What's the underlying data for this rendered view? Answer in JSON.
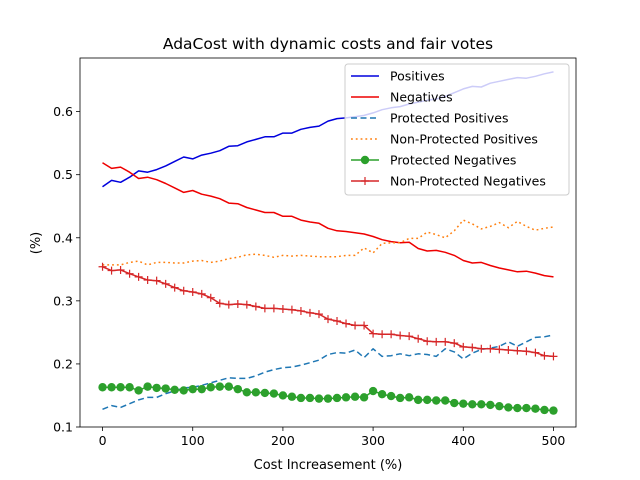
{
  "chart_data": {
    "type": "line",
    "title": "AdaCost with dynamic costs and fair votes",
    "xlabel": "Cost Increasement (%)",
    "ylabel": "(%)",
    "xlim": [
      -25,
      525
    ],
    "ylim": [
      0.1,
      0.685
    ],
    "xticks": [
      0,
      100,
      200,
      300,
      400,
      500
    ],
    "yticks": [
      0.1,
      0.2,
      0.3,
      0.4,
      0.5,
      0.6
    ],
    "grid": false,
    "legend_position": "top-right",
    "x": [
      0,
      10,
      20,
      30,
      40,
      50,
      60,
      70,
      80,
      90,
      100,
      110,
      120,
      130,
      140,
      150,
      160,
      170,
      180,
      190,
      200,
      210,
      220,
      230,
      240,
      250,
      260,
      270,
      280,
      290,
      300,
      310,
      320,
      330,
      340,
      350,
      360,
      370,
      380,
      390,
      400,
      410,
      420,
      430,
      440,
      450,
      460,
      470,
      480,
      490,
      500
    ],
    "series": [
      {
        "name": "Positives",
        "color": "#0000dd",
        "style": "solid",
        "marker": "none",
        "values": [
          0.481,
          0.491,
          0.488,
          0.496,
          0.506,
          0.504,
          0.508,
          0.514,
          0.521,
          0.528,
          0.525,
          0.531,
          0.534,
          0.538,
          0.545,
          0.546,
          0.552,
          0.556,
          0.56,
          0.56,
          0.566,
          0.566,
          0.572,
          0.575,
          0.577,
          0.585,
          0.589,
          0.59,
          0.592,
          0.594,
          0.598,
          0.603,
          0.606,
          0.608,
          0.612,
          0.615,
          0.618,
          0.62,
          0.624,
          0.63,
          0.636,
          0.64,
          0.639,
          0.645,
          0.648,
          0.651,
          0.654,
          0.653,
          0.656,
          0.66,
          0.663
        ]
      },
      {
        "name": "Negatives",
        "color": "#ee0000",
        "style": "solid",
        "marker": "none",
        "values": [
          0.519,
          0.51,
          0.512,
          0.504,
          0.494,
          0.496,
          0.492,
          0.486,
          0.479,
          0.472,
          0.475,
          0.469,
          0.466,
          0.462,
          0.455,
          0.454,
          0.448,
          0.444,
          0.44,
          0.44,
          0.434,
          0.434,
          0.428,
          0.425,
          0.423,
          0.415,
          0.411,
          0.41,
          0.408,
          0.406,
          0.402,
          0.397,
          0.394,
          0.392,
          0.393,
          0.383,
          0.379,
          0.38,
          0.377,
          0.372,
          0.364,
          0.36,
          0.361,
          0.356,
          0.352,
          0.349,
          0.346,
          0.347,
          0.344,
          0.34,
          0.338
        ]
      },
      {
        "name": "Protected Positives",
        "color": "#1f77b4",
        "style": "dashed",
        "marker": "none",
        "values": [
          0.128,
          0.134,
          0.131,
          0.137,
          0.143,
          0.147,
          0.147,
          0.153,
          0.157,
          0.162,
          0.163,
          0.166,
          0.17,
          0.174,
          0.178,
          0.177,
          0.177,
          0.181,
          0.187,
          0.191,
          0.194,
          0.195,
          0.198,
          0.202,
          0.206,
          0.215,
          0.218,
          0.217,
          0.222,
          0.21,
          0.224,
          0.212,
          0.213,
          0.216,
          0.213,
          0.216,
          0.215,
          0.212,
          0.224,
          0.219,
          0.208,
          0.217,
          0.223,
          0.225,
          0.228,
          0.235,
          0.228,
          0.235,
          0.242,
          0.243,
          0.246
        ]
      },
      {
        "name": "Non-Protected Positives",
        "color": "#ff7f0e",
        "style": "dotted",
        "marker": "none",
        "values": [
          0.357,
          0.357,
          0.357,
          0.361,
          0.363,
          0.357,
          0.361,
          0.361,
          0.36,
          0.36,
          0.363,
          0.364,
          0.361,
          0.363,
          0.367,
          0.369,
          0.373,
          0.374,
          0.372,
          0.369,
          0.372,
          0.371,
          0.372,
          0.371,
          0.37,
          0.37,
          0.37,
          0.372,
          0.372,
          0.384,
          0.376,
          0.391,
          0.392,
          0.392,
          0.399,
          0.399,
          0.409,
          0.405,
          0.4,
          0.411,
          0.428,
          0.422,
          0.414,
          0.418,
          0.424,
          0.416,
          0.426,
          0.418,
          0.412,
          0.415,
          0.417
        ]
      },
      {
        "name": "Protected Negatives",
        "color": "#2ca02c",
        "style": "solid",
        "marker": "circle",
        "values": [
          0.163,
          0.163,
          0.163,
          0.163,
          0.158,
          0.164,
          0.162,
          0.161,
          0.159,
          0.158,
          0.16,
          0.16,
          0.163,
          0.164,
          0.164,
          0.16,
          0.155,
          0.155,
          0.154,
          0.153,
          0.15,
          0.148,
          0.146,
          0.146,
          0.145,
          0.145,
          0.146,
          0.147,
          0.148,
          0.147,
          0.157,
          0.152,
          0.149,
          0.146,
          0.147,
          0.143,
          0.143,
          0.142,
          0.142,
          0.138,
          0.137,
          0.136,
          0.136,
          0.135,
          0.133,
          0.131,
          0.13,
          0.13,
          0.129,
          0.127,
          0.126
        ]
      },
      {
        "name": "Non-Protected Negatives",
        "color": "#d62728",
        "style": "solid",
        "marker": "plus",
        "values": [
          0.354,
          0.348,
          0.349,
          0.343,
          0.338,
          0.333,
          0.332,
          0.327,
          0.321,
          0.316,
          0.314,
          0.311,
          0.305,
          0.296,
          0.294,
          0.295,
          0.294,
          0.291,
          0.288,
          0.288,
          0.287,
          0.286,
          0.284,
          0.281,
          0.279,
          0.271,
          0.268,
          0.264,
          0.261,
          0.261,
          0.248,
          0.247,
          0.247,
          0.245,
          0.244,
          0.24,
          0.236,
          0.235,
          0.235,
          0.233,
          0.227,
          0.226,
          0.224,
          0.224,
          0.223,
          0.222,
          0.221,
          0.22,
          0.218,
          0.213,
          0.212
        ]
      }
    ]
  }
}
